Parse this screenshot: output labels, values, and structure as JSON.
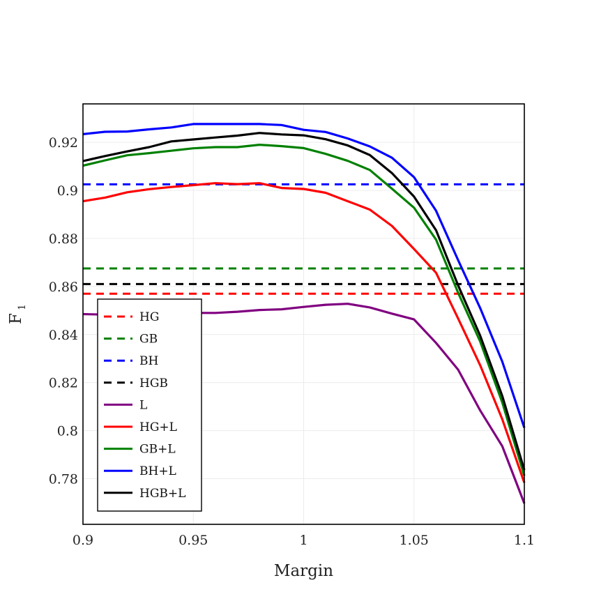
{
  "chart_data": {
    "type": "line",
    "title": "",
    "xlabel": "Margin",
    "ylabel": "F",
    "ylabel_subscript": "1",
    "xlim": [
      0.9,
      1.1
    ],
    "ylim": [
      0.761,
      0.936
    ],
    "grid": true,
    "legend_position": "bottom-left",
    "x": [
      0.9,
      0.91,
      0.92,
      0.93,
      0.94,
      0.95,
      0.96,
      0.97,
      0.98,
      0.99,
      1.0,
      1.01,
      1.02,
      1.03,
      1.04,
      1.05,
      1.06,
      1.07,
      1.08,
      1.09,
      1.1
    ],
    "x_ticks": [
      {
        "value": 0.9,
        "label": "0.9"
      },
      {
        "value": 0.95,
        "label": "0.95"
      },
      {
        "value": 1.0,
        "label": "1"
      },
      {
        "value": 1.05,
        "label": "1.05"
      },
      {
        "value": 1.1,
        "label": "1.1"
      }
    ],
    "y_ticks": [
      {
        "value": 0.78,
        "label": "0.78"
      },
      {
        "value": 0.8,
        "label": "0.8"
      },
      {
        "value": 0.82,
        "label": "0.82"
      },
      {
        "value": 0.84,
        "label": "0.84"
      },
      {
        "value": 0.86,
        "label": "0.86"
      },
      {
        "value": 0.88,
        "label": "0.88"
      },
      {
        "value": 0.9,
        "label": "0.9"
      },
      {
        "value": 0.92,
        "label": "0.92"
      }
    ],
    "series": [
      {
        "name": "HG",
        "color": "#ff0000",
        "style": "dashed",
        "constant": 0.857
      },
      {
        "name": "GB",
        "color": "#008000",
        "style": "dashed",
        "constant": 0.8675
      },
      {
        "name": "BH",
        "color": "#0000ff",
        "style": "dashed",
        "constant": 0.9025
      },
      {
        "name": "HGB",
        "color": "#000000",
        "style": "dashed",
        "constant": 0.861
      },
      {
        "name": "L",
        "color": "#800080",
        "style": "solid",
        "values": [
          0.8485,
          0.8483,
          0.8486,
          0.849,
          0.849,
          0.849,
          0.849,
          0.8495,
          0.8502,
          0.8505,
          0.8515,
          0.8524,
          0.8528,
          0.8513,
          0.8487,
          0.8463,
          0.8365,
          0.8254,
          0.8084,
          0.7935,
          0.7697
        ]
      },
      {
        "name": "HG+L",
        "color": "#ff0000",
        "style": "solid",
        "values": [
          0.8955,
          0.897,
          0.8992,
          0.9005,
          0.9014,
          0.9022,
          0.903,
          0.9026,
          0.903,
          0.901,
          0.9006,
          0.899,
          0.8955,
          0.892,
          0.8852,
          0.8756,
          0.8657,
          0.8467,
          0.8272,
          0.8047,
          0.7783
        ]
      },
      {
        "name": "GB+L",
        "color": "#008000",
        "style": "solid",
        "values": [
          0.9103,
          0.9125,
          0.9146,
          0.9155,
          0.9165,
          0.9175,
          0.918,
          0.918,
          0.919,
          0.9184,
          0.9176,
          0.9152,
          0.9123,
          0.9085,
          0.9007,
          0.8928,
          0.8795,
          0.8574,
          0.8371,
          0.8117,
          0.7812
        ]
      },
      {
        "name": "BH+L",
        "color": "#0000ff",
        "style": "solid",
        "values": [
          0.9234,
          0.9244,
          0.9245,
          0.9254,
          0.9262,
          0.9276,
          0.9276,
          0.9276,
          0.9276,
          0.9272,
          0.9252,
          0.9243,
          0.9216,
          0.9183,
          0.9136,
          0.9055,
          0.8915,
          0.871,
          0.851,
          0.8287,
          0.8012
        ]
      },
      {
        "name": "HGB+L",
        "color": "#000000",
        "style": "solid",
        "values": [
          0.9122,
          0.9143,
          0.9162,
          0.918,
          0.9204,
          0.9212,
          0.922,
          0.9228,
          0.9239,
          0.9233,
          0.9229,
          0.9213,
          0.9187,
          0.9147,
          0.9072,
          0.8974,
          0.8834,
          0.8605,
          0.8395,
          0.8144,
          0.7836
        ]
      }
    ]
  }
}
